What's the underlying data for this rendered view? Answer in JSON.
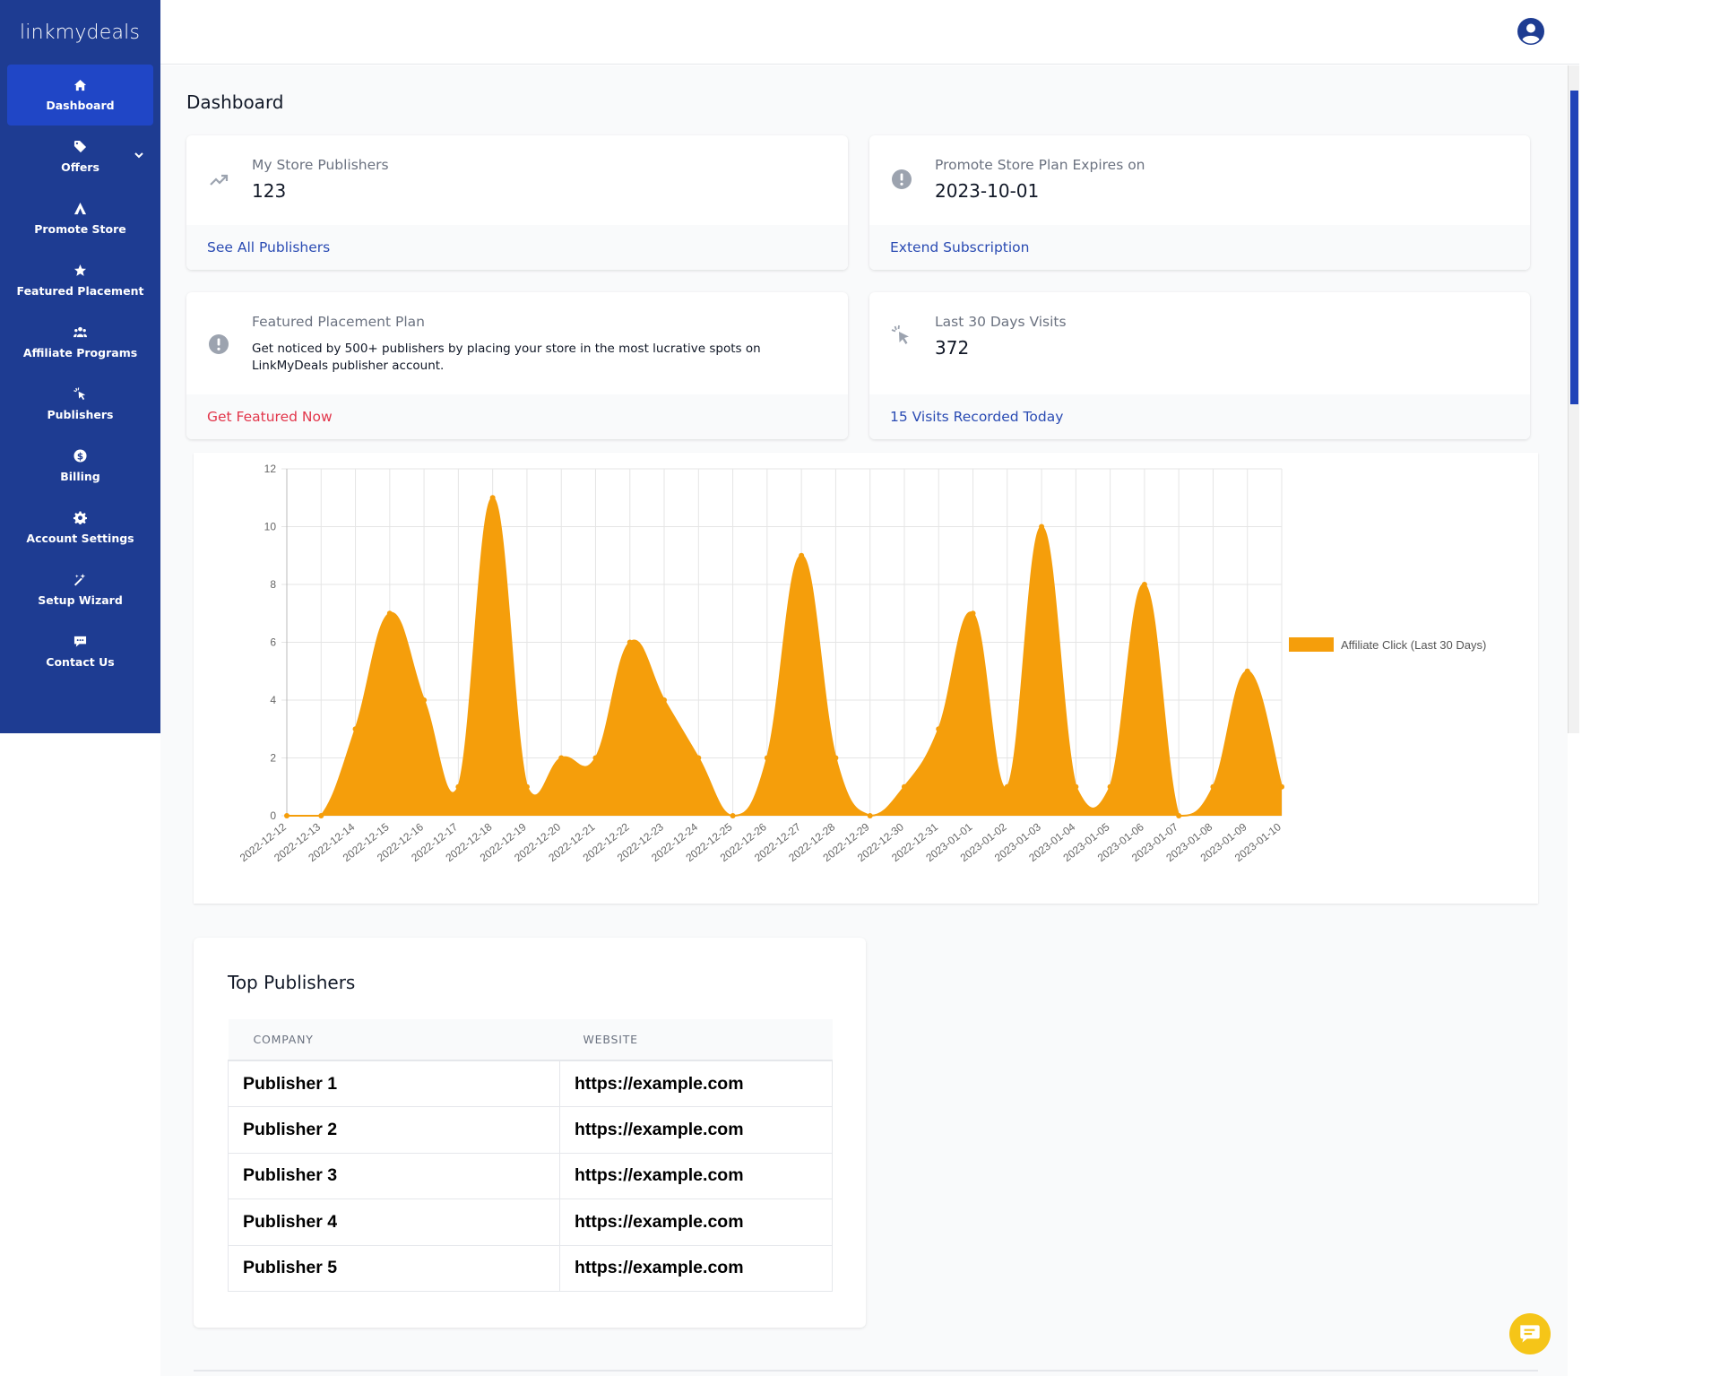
{
  "brand": "linkmydeals",
  "sidebar": {
    "items": [
      {
        "label": "Dashboard",
        "icon": "home-icon"
      },
      {
        "label": "Offers",
        "icon": "tag-icon"
      },
      {
        "label": "Promote Store",
        "icon": "promote-icon"
      },
      {
        "label": "Featured Placement",
        "icon": "star-icon"
      },
      {
        "label": "Affiliate Programs",
        "icon": "users-icon"
      },
      {
        "label": "Publishers",
        "icon": "pointer-icon"
      },
      {
        "label": "Billing",
        "icon": "dollar-icon"
      },
      {
        "label": "Account Settings",
        "icon": "gear-icon"
      },
      {
        "label": "Setup Wizard",
        "icon": "wand-icon"
      },
      {
        "label": "Contact Us",
        "icon": "chat-icon"
      }
    ]
  },
  "page_title": "Dashboard",
  "cards": {
    "publishers": {
      "label": "My Store Publishers",
      "value": "123",
      "link": "See All Publishers"
    },
    "plan": {
      "label": "Promote Store Plan Expires on",
      "value": "2023-10-01",
      "link": "Extend Subscription"
    },
    "featured": {
      "label": "Featured Placement Plan",
      "desc_line1": "Get noticed by 500+ publishers by placing your store in the most lucrative spots on",
      "desc_line2": "LinkMyDeals publisher account.",
      "link": "Get Featured Now"
    },
    "visits": {
      "label": "Last 30 Days Visits",
      "value": "372",
      "link": "15 Visits Recorded Today"
    }
  },
  "colors": {
    "sidebar": "#1e3c92",
    "accent": "#2046c6",
    "series": "#f59e0b"
  },
  "chart_data": {
    "type": "area",
    "x": [
      "2022-12-12",
      "2022-12-13",
      "2022-12-14",
      "2022-12-15",
      "2022-12-16",
      "2022-12-17",
      "2022-12-18",
      "2022-12-19",
      "2022-12-20",
      "2022-12-21",
      "2022-12-22",
      "2022-12-23",
      "2022-12-24",
      "2022-12-25",
      "2022-12-26",
      "2022-12-27",
      "2022-12-28",
      "2022-12-29",
      "2022-12-30",
      "2022-12-31",
      "2023-01-01",
      "2023-01-02",
      "2023-01-03",
      "2023-01-04",
      "2023-01-05",
      "2023-01-06",
      "2023-01-07",
      "2023-01-08",
      "2023-01-09",
      "2023-01-10"
    ],
    "series": [
      {
        "name": "Affiliate Click (Last 30 Days)",
        "values": [
          0,
          0,
          3,
          7,
          4,
          1,
          11,
          1,
          2,
          2,
          6,
          4,
          2,
          0,
          2,
          9,
          2,
          0,
          1,
          3,
          7,
          1,
          10,
          1,
          1,
          8,
          0,
          1,
          5,
          1
        ]
      }
    ],
    "ylim": [
      0,
      12
    ],
    "yticks": [
      0,
      2,
      4,
      6,
      8,
      10,
      12
    ],
    "grid": true,
    "legend": "right"
  },
  "top_publishers": {
    "title": "Top Publishers",
    "columns": [
      "COMPANY",
      "WEBSITE"
    ],
    "rows": [
      [
        "Publisher 1",
        "https://example.com"
      ],
      [
        "Publisher 2",
        "https://example.com"
      ],
      [
        "Publisher 3",
        "https://example.com"
      ],
      [
        "Publisher 4",
        "https://example.com"
      ],
      [
        "Publisher 5",
        "https://example.com"
      ]
    ]
  }
}
